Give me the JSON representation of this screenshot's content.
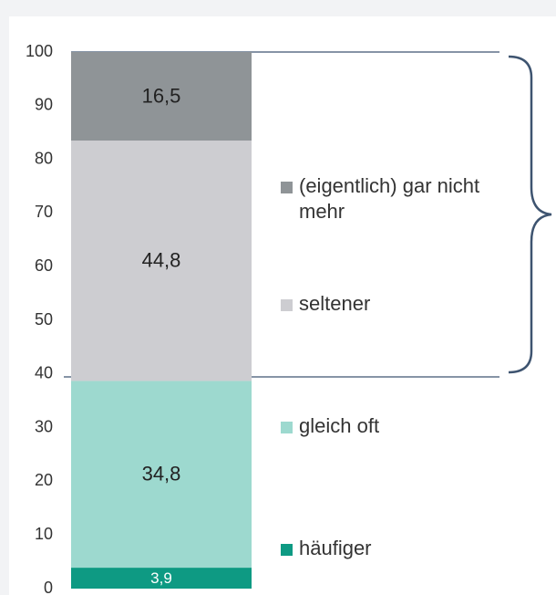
{
  "chart_data": {
    "type": "stacked_bar",
    "categories": [
      null
    ],
    "series": [
      {
        "name": "häufiger",
        "color": "#0e9a83",
        "values": [
          3.9
        ],
        "value_labels": [
          "3,9"
        ]
      },
      {
        "name": "gleich oft",
        "color": "#9dd9cf",
        "values": [
          34.8
        ],
        "value_labels": [
          "34,8"
        ]
      },
      {
        "name": "seltener",
        "color": "#cdcdd1",
        "values": [
          44.8
        ],
        "value_labels": [
          "44,8"
        ]
      },
      {
        "name": "(eigentlich) gar nicht mehr",
        "color": "#8f9497",
        "values": [
          16.5
        ],
        "value_labels": [
          "16,5"
        ]
      }
    ],
    "ylim": [
      0,
      100
    ],
    "yticks": [
      0,
      10,
      20,
      30,
      40,
      50,
      60,
      70,
      80,
      90,
      100
    ]
  }
}
